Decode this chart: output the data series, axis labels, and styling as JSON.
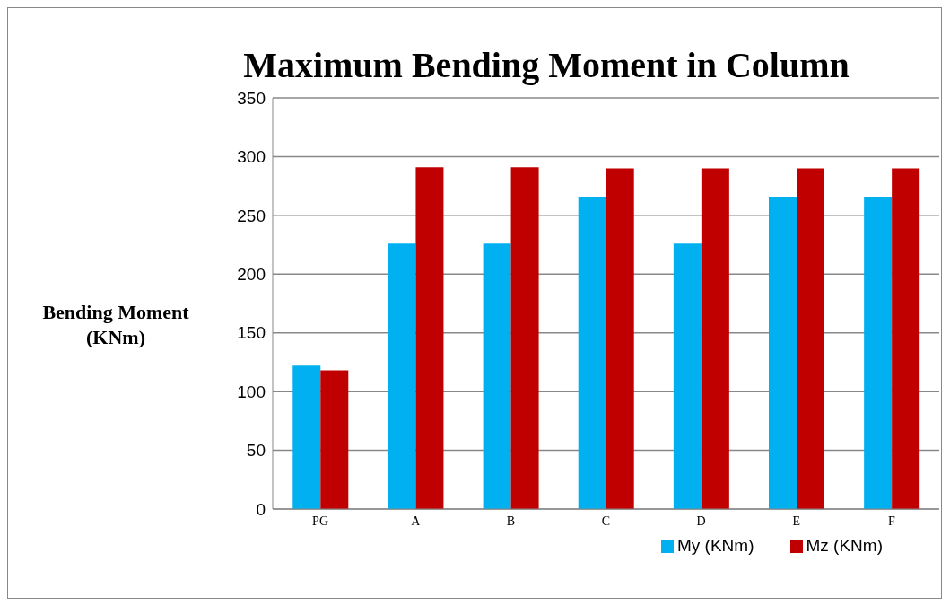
{
  "chart_data": {
    "type": "bar",
    "title": "Maximum Bending Moment in Column",
    "ylabel": "Bending Moment (KNm)",
    "categories": [
      "PG",
      "A",
      "B",
      "C",
      "D",
      "E",
      "F"
    ],
    "series": [
      {
        "name": "My (KNm)",
        "color": "#00b0f0",
        "values": [
          122,
          226,
          226,
          266,
          226,
          266,
          266
        ]
      },
      {
        "name": "Mz (KNm)",
        "color": "#c00000",
        "values": [
          118,
          291,
          291,
          290,
          290,
          290,
          290
        ]
      }
    ],
    "ylim": [
      0,
      350
    ],
    "yticks": [
      0,
      50,
      100,
      150,
      200,
      250,
      300,
      350
    ],
    "grid": "y",
    "legend": "bottom"
  }
}
